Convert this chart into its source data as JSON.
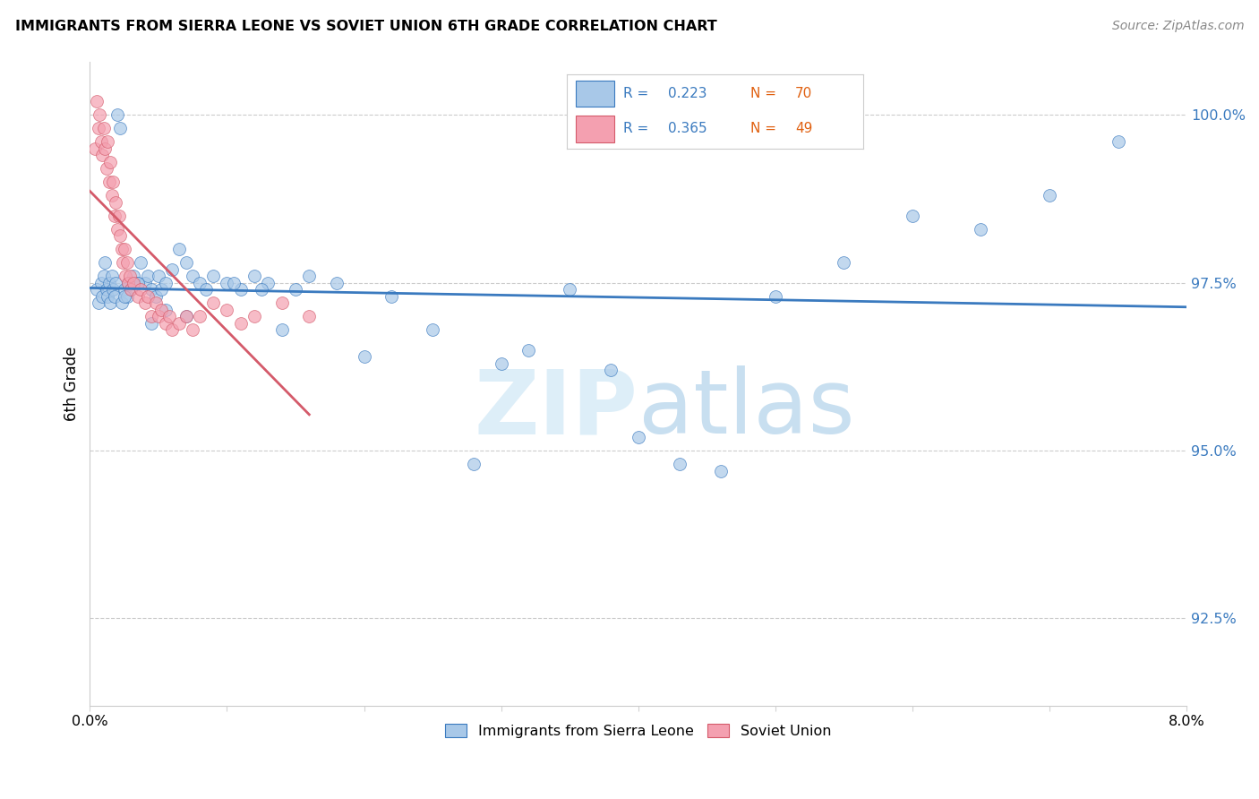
{
  "title": "IMMIGRANTS FROM SIERRA LEONE VS SOVIET UNION 6TH GRADE CORRELATION CHART",
  "source": "Source: ZipAtlas.com",
  "ylabel": "6th Grade",
  "xmin": 0.0,
  "xmax": 8.0,
  "ymin": 91.2,
  "ymax": 100.8,
  "yticks": [
    92.5,
    95.0,
    97.5,
    100.0
  ],
  "ytick_labels": [
    "92.5%",
    "95.0%",
    "97.5%",
    "100.0%"
  ],
  "xticks": [
    0.0,
    1.0,
    2.0,
    3.0,
    4.0,
    5.0,
    6.0,
    7.0,
    8.0
  ],
  "legend_r1": "R = 0.223",
  "legend_n1": "N = 70",
  "legend_r2": "R = 0.365",
  "legend_n2": "N = 49",
  "blue_color": "#a8c8e8",
  "pink_color": "#f4a0b0",
  "blue_line_color": "#3a7abf",
  "pink_line_color": "#d45a6a",
  "blue_edge_color": "#3a7abf",
  "pink_edge_color": "#d45a6a",
  "watermark_zip_color": "#ddeef8",
  "watermark_atlas_color": "#c8dff0",
  "sierra_leone_x": [
    0.05,
    0.06,
    0.08,
    0.09,
    0.1,
    0.11,
    0.12,
    0.13,
    0.14,
    0.15,
    0.16,
    0.17,
    0.18,
    0.19,
    0.2,
    0.22,
    0.23,
    0.25,
    0.27,
    0.28,
    0.3,
    0.32,
    0.35,
    0.37,
    0.4,
    0.42,
    0.45,
    0.48,
    0.5,
    0.52,
    0.55,
    0.6,
    0.65,
    0.7,
    0.75,
    0.8,
    0.9,
    1.0,
    1.1,
    1.2,
    1.3,
    1.4,
    1.5,
    1.6,
    1.8,
    2.0,
    2.2,
    2.5,
    2.8,
    3.0,
    3.2,
    3.5,
    3.8,
    4.0,
    4.3,
    4.6,
    5.0,
    5.5,
    6.0,
    6.5,
    7.0,
    7.5,
    0.25,
    0.35,
    0.45,
    0.55,
    0.7,
    0.85,
    1.05,
    1.25
  ],
  "sierra_leone_y": [
    97.4,
    97.2,
    97.5,
    97.3,
    97.6,
    97.8,
    97.4,
    97.3,
    97.5,
    97.2,
    97.6,
    97.4,
    97.3,
    97.5,
    100.0,
    99.8,
    97.2,
    97.4,
    97.3,
    97.5,
    97.4,
    97.6,
    97.5,
    97.8,
    97.5,
    97.6,
    97.4,
    97.3,
    97.6,
    97.4,
    97.5,
    97.7,
    98.0,
    97.8,
    97.6,
    97.5,
    97.6,
    97.5,
    97.4,
    97.6,
    97.5,
    96.8,
    97.4,
    97.6,
    97.5,
    96.4,
    97.3,
    96.8,
    94.8,
    96.3,
    96.5,
    97.4,
    96.2,
    95.2,
    94.8,
    94.7,
    97.3,
    97.8,
    98.5,
    98.3,
    98.8,
    99.6,
    97.3,
    97.5,
    96.9,
    97.1,
    97.0,
    97.4,
    97.5,
    97.4
  ],
  "soviet_union_x": [
    0.04,
    0.05,
    0.06,
    0.07,
    0.08,
    0.09,
    0.1,
    0.11,
    0.12,
    0.13,
    0.14,
    0.15,
    0.16,
    0.17,
    0.18,
    0.19,
    0.2,
    0.21,
    0.22,
    0.23,
    0.24,
    0.25,
    0.26,
    0.27,
    0.28,
    0.29,
    0.3,
    0.32,
    0.35,
    0.37,
    0.4,
    0.42,
    0.45,
    0.48,
    0.5,
    0.52,
    0.55,
    0.58,
    0.6,
    0.65,
    0.7,
    0.75,
    0.8,
    0.9,
    1.0,
    1.1,
    1.2,
    1.4,
    1.6
  ],
  "soviet_union_y": [
    99.5,
    100.2,
    99.8,
    100.0,
    99.6,
    99.4,
    99.8,
    99.5,
    99.2,
    99.6,
    99.0,
    99.3,
    98.8,
    99.0,
    98.5,
    98.7,
    98.3,
    98.5,
    98.2,
    98.0,
    97.8,
    98.0,
    97.6,
    97.8,
    97.5,
    97.6,
    97.4,
    97.5,
    97.3,
    97.4,
    97.2,
    97.3,
    97.0,
    97.2,
    97.0,
    97.1,
    96.9,
    97.0,
    96.8,
    96.9,
    97.0,
    96.8,
    97.0,
    97.2,
    97.1,
    96.9,
    97.0,
    97.2,
    97.0
  ]
}
